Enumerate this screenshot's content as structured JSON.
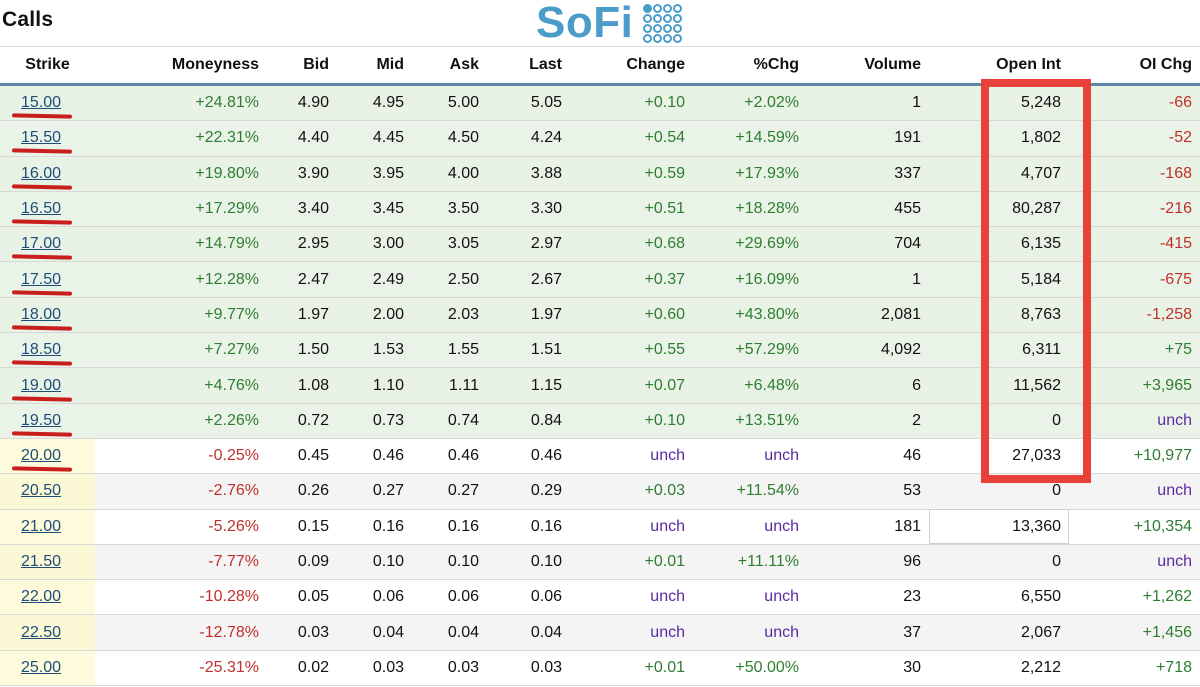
{
  "header": {
    "title": "Calls",
    "logo_text": "SoFi"
  },
  "columns": [
    "Strike",
    "Moneyness",
    "Bid",
    "Mid",
    "Ask",
    "Last",
    "Change",
    "%Chg",
    "Volume",
    "Open Int",
    "OI Chg"
  ],
  "rows": [
    {
      "strike": "15.00",
      "moneyness": "+24.81%",
      "bid": "4.90",
      "mid": "4.95",
      "ask": "5.00",
      "last": "5.05",
      "change": "+0.10",
      "pct_chg": "+2.02%",
      "volume": "1",
      "open_int": "5,248",
      "oi_chg": "-66"
    },
    {
      "strike": "15.50",
      "moneyness": "+22.31%",
      "bid": "4.40",
      "mid": "4.45",
      "ask": "4.50",
      "last": "4.24",
      "change": "+0.54",
      "pct_chg": "+14.59%",
      "volume": "191",
      "open_int": "1,802",
      "oi_chg": "-52"
    },
    {
      "strike": "16.00",
      "moneyness": "+19.80%",
      "bid": "3.90",
      "mid": "3.95",
      "ask": "4.00",
      "last": "3.88",
      "change": "+0.59",
      "pct_chg": "+17.93%",
      "volume": "337",
      "open_int": "4,707",
      "oi_chg": "-168"
    },
    {
      "strike": "16.50",
      "moneyness": "+17.29%",
      "bid": "3.40",
      "mid": "3.45",
      "ask": "3.50",
      "last": "3.30",
      "change": "+0.51",
      "pct_chg": "+18.28%",
      "volume": "455",
      "open_int": "80,287",
      "oi_chg": "-216"
    },
    {
      "strike": "17.00",
      "moneyness": "+14.79%",
      "bid": "2.95",
      "mid": "3.00",
      "ask": "3.05",
      "last": "2.97",
      "change": "+0.68",
      "pct_chg": "+29.69%",
      "volume": "704",
      "open_int": "6,135",
      "oi_chg": "-415"
    },
    {
      "strike": "17.50",
      "moneyness": "+12.28%",
      "bid": "2.47",
      "mid": "2.49",
      "ask": "2.50",
      "last": "2.67",
      "change": "+0.37",
      "pct_chg": "+16.09%",
      "volume": "1",
      "open_int": "5,184",
      "oi_chg": "-675"
    },
    {
      "strike": "18.00",
      "moneyness": "+9.77%",
      "bid": "1.97",
      "mid": "2.00",
      "ask": "2.03",
      "last": "1.97",
      "change": "+0.60",
      "pct_chg": "+43.80%",
      "volume": "2,081",
      "open_int": "8,763",
      "oi_chg": "-1,258"
    },
    {
      "strike": "18.50",
      "moneyness": "+7.27%",
      "bid": "1.50",
      "mid": "1.53",
      "ask": "1.55",
      "last": "1.51",
      "change": "+0.55",
      "pct_chg": "+57.29%",
      "volume": "4,092",
      "open_int": "6,311",
      "oi_chg": "+75"
    },
    {
      "strike": "19.00",
      "moneyness": "+4.76%",
      "bid": "1.08",
      "mid": "1.10",
      "ask": "1.11",
      "last": "1.15",
      "change": "+0.07",
      "pct_chg": "+6.48%",
      "volume": "6",
      "open_int": "11,562",
      "oi_chg": "+3,965"
    },
    {
      "strike": "19.50",
      "moneyness": "+2.26%",
      "bid": "0.72",
      "mid": "0.73",
      "ask": "0.74",
      "last": "0.84",
      "change": "+0.10",
      "pct_chg": "+13.51%",
      "volume": "2",
      "open_int": "0",
      "oi_chg": "unch"
    },
    {
      "strike": "20.00",
      "moneyness": "-0.25%",
      "bid": "0.45",
      "mid": "0.46",
      "ask": "0.46",
      "last": "0.46",
      "change": "unch",
      "pct_chg": "unch",
      "volume": "46",
      "open_int": "27,033",
      "oi_chg": "+10,977"
    },
    {
      "strike": "20.50",
      "moneyness": "-2.76%",
      "bid": "0.26",
      "mid": "0.27",
      "ask": "0.27",
      "last": "0.29",
      "change": "+0.03",
      "pct_chg": "+11.54%",
      "volume": "53",
      "open_int": "0",
      "oi_chg": "unch"
    },
    {
      "strike": "21.00",
      "moneyness": "-5.26%",
      "bid": "0.15",
      "mid": "0.16",
      "ask": "0.16",
      "last": "0.16",
      "change": "unch",
      "pct_chg": "unch",
      "volume": "181",
      "open_int": "13,360",
      "oi_chg": "+10,354"
    },
    {
      "strike": "21.50",
      "moneyness": "-7.77%",
      "bid": "0.09",
      "mid": "0.10",
      "ask": "0.10",
      "last": "0.10",
      "change": "+0.01",
      "pct_chg": "+11.11%",
      "volume": "96",
      "open_int": "0",
      "oi_chg": "unch"
    },
    {
      "strike": "22.00",
      "moneyness": "-10.28%",
      "bid": "0.05",
      "mid": "0.06",
      "ask": "0.06",
      "last": "0.06",
      "change": "unch",
      "pct_chg": "unch",
      "volume": "23",
      "open_int": "6,550",
      "oi_chg": "+1,262"
    },
    {
      "strike": "22.50",
      "moneyness": "-12.78%",
      "bid": "0.03",
      "mid": "0.04",
      "ask": "0.04",
      "last": "0.04",
      "change": "unch",
      "pct_chg": "unch",
      "volume": "37",
      "open_int": "2,067",
      "oi_chg": "+1,456"
    },
    {
      "strike": "25.00",
      "moneyness": "-25.31%",
      "bid": "0.02",
      "mid": "0.03",
      "ask": "0.03",
      "last": "0.03",
      "change": "+0.01",
      "pct_chg": "+50.00%",
      "volume": "30",
      "open_int": "2,212",
      "oi_chg": "+718"
    }
  ],
  "colors": {
    "positive": "#2f7d32",
    "negative": "#c0302b",
    "unchanged": "#5b2a9e",
    "in_the_money_row": "#e8f2e5",
    "strike_link": "#1f4d7a",
    "annotation_red": "#e8413a",
    "logo_blue": "#4a9cc9"
  },
  "annotations": {
    "underlined_strikes": [
      "15.00",
      "15.50",
      "16.00",
      "16.50",
      "17.00",
      "17.50",
      "18.00",
      "18.50",
      "19.00",
      "19.50",
      "20.00"
    ],
    "boxed_column": "Open Int"
  }
}
